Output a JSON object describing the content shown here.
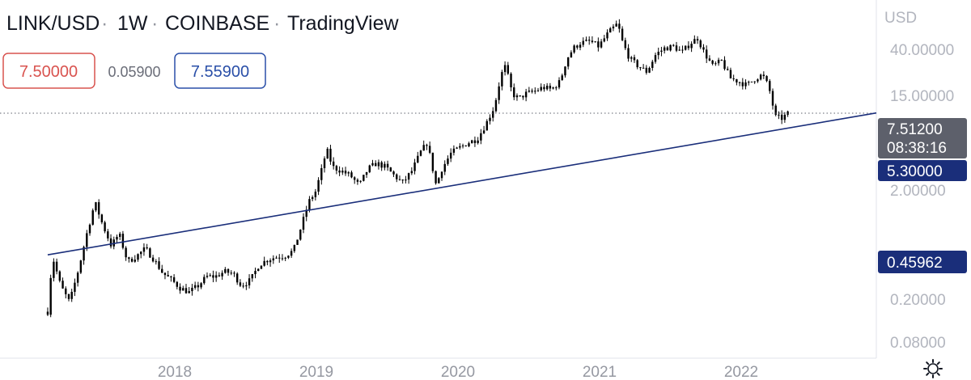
{
  "header": {
    "symbol": "LINK/USD",
    "interval": "1W",
    "exchange": "COINBASE",
    "brand": "TradingView",
    "separator": "·"
  },
  "toolbar": {
    "sell_price": "7.50000",
    "spread": "0.05900",
    "buy_price": "7.55900"
  },
  "price_axis": {
    "currency_label": "USD",
    "labels": [
      "40.00000",
      "15.00000",
      "2.00000",
      "0.20000",
      "0.08000"
    ],
    "current_price": "7.51200",
    "countdown": "08:38:16",
    "trendline_tag_upper": "5.30000",
    "trendline_tag_lower": "0.45962"
  },
  "time_axis": {
    "labels": [
      "2018",
      "2019",
      "2020",
      "2021",
      "2022"
    ]
  },
  "colors": {
    "sell": "#d9534f",
    "buy": "#2a4fa8",
    "trendline": "#1a2e7a",
    "candles": "#000000",
    "price_tag": "#5d606b",
    "line_tag": "#1a2e7a"
  },
  "icons": {
    "settings": "gear-icon"
  },
  "chart_data": {
    "type": "candlestick",
    "symbol": "LINK/USD",
    "interval": "1W",
    "y_scale": "log",
    "ylim": [
      0.06,
      70
    ],
    "x_range": [
      "2017-06-01",
      "2022-12-31"
    ],
    "grid": false,
    "current_price": 7.512,
    "series": [
      {
        "kind": "close_path",
        "points": [
          [
            "2017-09-20",
            0.15
          ],
          [
            "2017-10-01",
            0.45
          ],
          [
            "2017-10-20",
            0.25
          ],
          [
            "2017-11-10",
            0.18
          ],
          [
            "2017-12-01",
            0.35
          ],
          [
            "2017-12-20",
            0.7
          ],
          [
            "2018-01-08",
            1.3
          ],
          [
            "2018-01-25",
            0.85
          ],
          [
            "2018-02-15",
            0.55
          ],
          [
            "2018-03-05",
            0.7
          ],
          [
            "2018-03-25",
            0.4
          ],
          [
            "2018-04-15",
            0.45
          ],
          [
            "2018-05-05",
            0.52
          ],
          [
            "2018-05-25",
            0.42
          ],
          [
            "2018-06-15",
            0.32
          ],
          [
            "2018-07-05",
            0.28
          ],
          [
            "2018-07-25",
            0.24
          ],
          [
            "2018-08-15",
            0.22
          ],
          [
            "2018-09-05",
            0.25
          ],
          [
            "2018-09-25",
            0.3
          ],
          [
            "2018-10-15",
            0.3
          ],
          [
            "2018-11-05",
            0.33
          ],
          [
            "2018-11-25",
            0.32
          ],
          [
            "2018-12-15",
            0.25
          ],
          [
            "2019-01-05",
            0.28
          ],
          [
            "2019-01-25",
            0.38
          ],
          [
            "2019-02-15",
            0.42
          ],
          [
            "2019-03-05",
            0.44
          ],
          [
            "2019-03-25",
            0.45
          ],
          [
            "2019-04-15",
            0.5
          ],
          [
            "2019-05-05",
            0.85
          ],
          [
            "2019-05-20",
            1.3
          ],
          [
            "2019-06-05",
            1.6
          ],
          [
            "2019-06-20",
            2.5
          ],
          [
            "2019-07-01",
            3.7
          ],
          [
            "2019-07-15",
            2.6
          ],
          [
            "2019-08-05",
            2.4
          ],
          [
            "2019-08-25",
            2.2
          ],
          [
            "2019-09-15",
            1.8
          ],
          [
            "2019-10-05",
            2.5
          ],
          [
            "2019-10-25",
            2.8
          ],
          [
            "2019-11-15",
            2.6
          ],
          [
            "2019-12-05",
            2.2
          ],
          [
            "2019-12-25",
            1.9
          ],
          [
            "2020-01-15",
            2.4
          ],
          [
            "2020-02-05",
            3.5
          ],
          [
            "2020-02-20",
            4.2
          ],
          [
            "2020-03-12",
            1.8
          ],
          [
            "2020-03-25",
            2.5
          ],
          [
            "2020-04-15",
            3.4
          ],
          [
            "2020-05-05",
            3.8
          ],
          [
            "2020-05-25",
            4.2
          ],
          [
            "2020-06-15",
            4.5
          ],
          [
            "2020-07-05",
            6
          ],
          [
            "2020-07-25",
            8.5
          ],
          [
            "2020-08-10",
            16
          ],
          [
            "2020-08-20",
            19
          ],
          [
            "2020-09-05",
            11
          ],
          [
            "2020-09-20",
            10
          ],
          [
            "2020-10-05",
            11
          ],
          [
            "2020-10-25",
            11.5
          ],
          [
            "2020-11-15",
            12.5
          ],
          [
            "2020-12-05",
            12
          ],
          [
            "2020-12-25",
            14
          ],
          [
            "2021-01-10",
            22
          ],
          [
            "2021-01-25",
            27
          ],
          [
            "2021-02-10",
            30
          ],
          [
            "2021-03-05",
            31
          ],
          [
            "2021-03-25",
            28
          ],
          [
            "2021-04-15",
            36
          ],
          [
            "2021-05-08",
            44
          ],
          [
            "2021-05-20",
            30
          ],
          [
            "2021-06-05",
            22
          ],
          [
            "2021-06-25",
            19
          ],
          [
            "2021-07-15",
            17
          ],
          [
            "2021-08-05",
            24
          ],
          [
            "2021-08-25",
            27
          ],
          [
            "2021-09-15",
            28
          ],
          [
            "2021-10-05",
            25
          ],
          [
            "2021-10-25",
            30
          ],
          [
            "2021-11-10",
            33
          ],
          [
            "2021-11-25",
            25
          ],
          [
            "2021-12-15",
            19
          ],
          [
            "2022-01-05",
            21
          ],
          [
            "2022-01-25",
            15
          ],
          [
            "2022-02-15",
            14
          ],
          [
            "2022-03-05",
            13
          ],
          [
            "2022-03-25",
            15
          ],
          [
            "2022-04-10",
            16
          ],
          [
            "2022-04-25",
            12.5
          ],
          [
            "2022-05-10",
            7
          ],
          [
            "2022-05-25",
            6.8
          ],
          [
            "2022-06-10",
            7.512
          ]
        ]
      },
      {
        "kind": "trendline",
        "start": [
          "2017-09-20",
          0.46
        ],
        "end": [
          "2022-12-31",
          7.55
        ]
      }
    ],
    "price_line": 7.512
  }
}
